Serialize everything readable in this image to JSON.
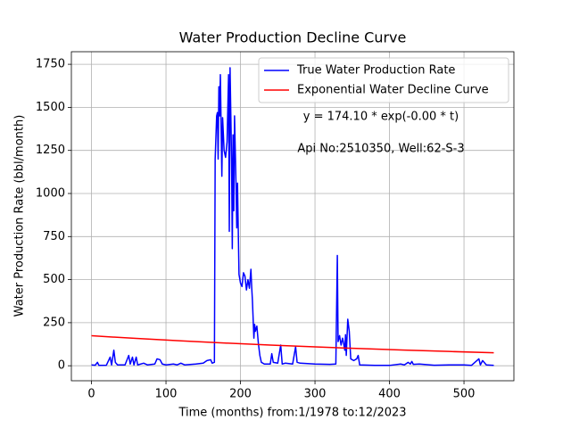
{
  "chart_data": {
    "type": "line",
    "title": "Water Production Decline Curve",
    "xlabel": "Time (months) from:1/1978 to:12/2023",
    "ylabel": "Water Production Rate (bbl/month)",
    "annotations": [
      "y = 174.10 * exp(-0.00 * t)",
      "Api No:2510350, Well:62-S-3"
    ],
    "xlim": [
      -27,
      567
    ],
    "ylim": [
      -87,
      1823
    ],
    "xticks": [
      0,
      100,
      200,
      300,
      400,
      500
    ],
    "yticks": [
      0,
      250,
      500,
      750,
      1000,
      1250,
      1500,
      1750
    ],
    "grid": true,
    "legend": "upper right",
    "series": [
      {
        "name": "True Water Production Rate",
        "color": "#0000ff",
        "x": [
          0,
          5,
          8,
          10,
          20,
          25,
          27,
          30,
          32,
          35,
          45,
          50,
          52,
          55,
          57,
          60,
          62,
          70,
          75,
          85,
          88,
          92,
          95,
          100,
          110,
          115,
          120,
          125,
          140,
          150,
          155,
          160,
          162,
          165,
          166,
          168,
          169,
          170,
          171,
          172,
          173,
          175,
          176,
          178,
          180,
          182,
          184,
          185,
          186,
          188,
          189,
          190,
          191,
          192,
          194,
          195,
          196,
          198,
          200,
          202,
          204,
          206,
          208,
          210,
          212,
          214,
          215,
          216,
          218,
          219,
          220,
          222,
          224,
          226,
          228,
          232,
          240,
          242,
          244,
          250,
          254,
          256,
          260,
          270,
          274,
          276,
          280,
          300,
          320,
          328,
          330,
          331,
          333,
          335,
          337,
          338,
          340,
          341,
          342,
          344,
          346,
          348,
          352,
          356,
          358,
          360,
          380,
          400,
          415,
          420,
          425,
          428,
          430,
          432,
          440,
          460,
          480,
          500,
          510,
          520,
          522,
          525,
          530,
          540
        ],
        "values": [
          5,
          3,
          20,
          2,
          3,
          50,
          5,
          90,
          20,
          5,
          5,
          60,
          10,
          50,
          5,
          50,
          5,
          15,
          5,
          10,
          40,
          35,
          10,
          5,
          10,
          5,
          15,
          5,
          10,
          15,
          30,
          35,
          15,
          20,
          1200,
          1450,
          1470,
          1200,
          1620,
          1450,
          1690,
          1100,
          1440,
          1250,
          1210,
          1300,
          1690,
          780,
          1730,
          1200,
          680,
          1340,
          900,
          1450,
          1050,
          800,
          1060,
          530,
          480,
          460,
          540,
          520,
          440,
          500,
          450,
          560,
          460,
          380,
          160,
          240,
          200,
          230,
          130,
          60,
          20,
          10,
          10,
          70,
          20,
          15,
          120,
          10,
          15,
          10,
          110,
          20,
          15,
          10,
          8,
          10,
          640,
          140,
          175,
          120,
          160,
          140,
          90,
          180,
          60,
          270,
          200,
          40,
          30,
          40,
          60,
          5,
          2,
          2,
          10,
          5,
          20,
          10,
          25,
          8,
          10,
          3,
          5,
          5,
          2,
          40,
          5,
          30,
          5,
          2
        ]
      },
      {
        "name": "Exponential Water Decline Curve",
        "color": "#ff0000",
        "x": [
          0,
          60,
          120,
          180,
          240,
          300,
          360,
          420,
          480,
          540
        ],
        "values": [
          174.1,
          158.7,
          144.6,
          131.8,
          120.1,
          109.5,
          99.8,
          90.9,
          82.9,
          75.5
        ]
      }
    ]
  }
}
